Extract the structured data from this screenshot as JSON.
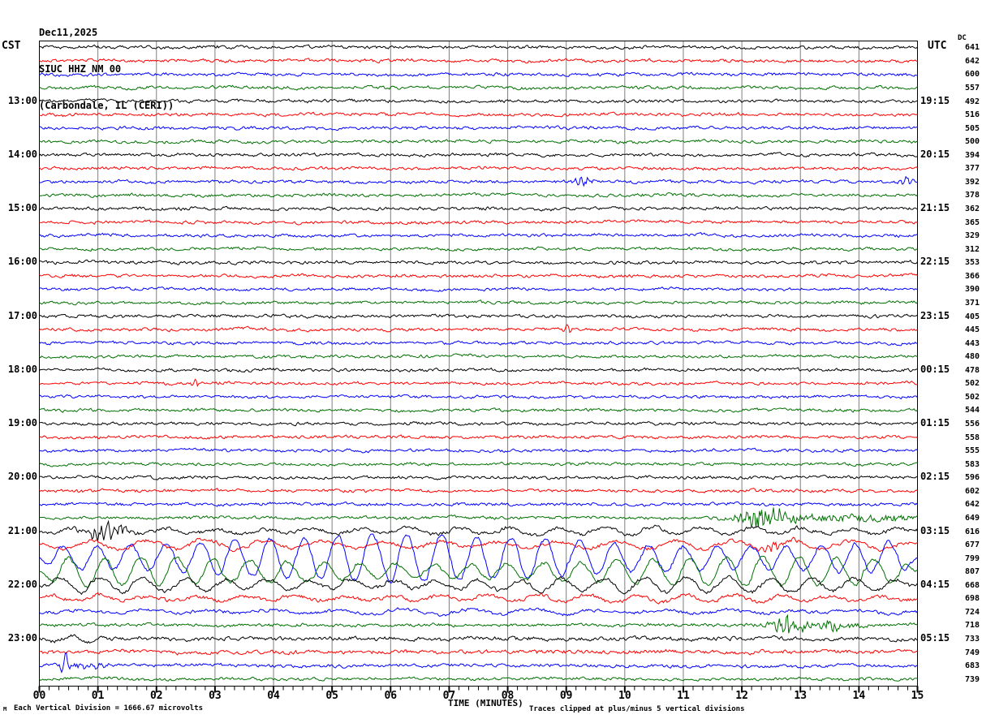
{
  "title": {
    "date": "Dec11,2025",
    "station": "SIUC HHZ NM 00",
    "location": "(Carbondale, IL (CERI))"
  },
  "headers": {
    "left": "CST",
    "right": "UTC",
    "dc": "DC"
  },
  "x_axis": {
    "label": "TIME (MINUTES)",
    "ticks": [
      "00",
      "01",
      "02",
      "03",
      "04",
      "05",
      "06",
      "07",
      "08",
      "09",
      "10",
      "11",
      "12",
      "13",
      "14",
      "15"
    ],
    "minor_ticks_per_minute": 6
  },
  "footer": {
    "corner_mark": "M",
    "scale_note": "Each Vertical Division = 1666.67 microvolts",
    "clip_note": "Traces clipped at plus/minus 5 vertical divisions"
  },
  "colors": {
    "trace_cycle": [
      "#000000",
      "#ff0000",
      "#0000ff",
      "#007000"
    ],
    "grid": "#7f7f7f",
    "border": "#000000",
    "background": "#ffffff"
  },
  "chart_data": {
    "type": "line",
    "subtype": "helicorder-seismogram",
    "minutes_per_row": 15,
    "x_range_minutes": [
      0,
      15
    ],
    "clip_divisions": 5,
    "rows": [
      {
        "cst": null,
        "utc": null,
        "dc": "641",
        "color_index": 0,
        "noise": 2.1,
        "events": []
      },
      {
        "cst": null,
        "utc": null,
        "dc": "642",
        "color_index": 1,
        "noise": 2.1,
        "events": []
      },
      {
        "cst": null,
        "utc": null,
        "dc": "600",
        "color_index": 2,
        "noise": 2.1,
        "events": []
      },
      {
        "cst": null,
        "utc": null,
        "dc": "557",
        "color_index": 3,
        "noise": 2.1,
        "events": []
      },
      {
        "cst": "13:00",
        "utc": "19:15",
        "dc": "492",
        "color_index": 0,
        "noise": 2.1,
        "events": []
      },
      {
        "cst": null,
        "utc": null,
        "dc": "516",
        "color_index": 1,
        "noise": 2.1,
        "events": []
      },
      {
        "cst": null,
        "utc": null,
        "dc": "505",
        "color_index": 2,
        "noise": 2.1,
        "events": []
      },
      {
        "cst": null,
        "utc": null,
        "dc": "500",
        "color_index": 3,
        "noise": 2.1,
        "events": []
      },
      {
        "cst": "14:00",
        "utc": "20:15",
        "dc": "394",
        "color_index": 0,
        "noise": 2.1,
        "events": []
      },
      {
        "cst": null,
        "utc": null,
        "dc": "377",
        "color_index": 1,
        "noise": 2.1,
        "events": []
      },
      {
        "cst": null,
        "utc": null,
        "dc": "392",
        "color_index": 2,
        "noise": 2.1,
        "events": [
          {
            "type": "burst",
            "t": 9.3,
            "w": 0.12,
            "amp": 4
          },
          {
            "type": "burst",
            "t": 14.85,
            "w": 0.1,
            "amp": 5
          }
        ]
      },
      {
        "cst": null,
        "utc": null,
        "dc": "378",
        "color_index": 3,
        "noise": 2.1,
        "events": []
      },
      {
        "cst": "15:00",
        "utc": "21:15",
        "dc": "362",
        "color_index": 0,
        "noise": 2.1,
        "events": []
      },
      {
        "cst": null,
        "utc": null,
        "dc": "365",
        "color_index": 1,
        "noise": 2.1,
        "events": []
      },
      {
        "cst": null,
        "utc": null,
        "dc": "329",
        "color_index": 2,
        "noise": 2.0,
        "events": []
      },
      {
        "cst": null,
        "utc": null,
        "dc": "312",
        "color_index": 3,
        "noise": 2.0,
        "events": []
      },
      {
        "cst": "16:00",
        "utc": "22:15",
        "dc": "353",
        "color_index": 0,
        "noise": 2.1,
        "events": []
      },
      {
        "cst": null,
        "utc": null,
        "dc": "366",
        "color_index": 1,
        "noise": 2.1,
        "events": []
      },
      {
        "cst": null,
        "utc": null,
        "dc": "390",
        "color_index": 2,
        "noise": 2.0,
        "events": []
      },
      {
        "cst": null,
        "utc": null,
        "dc": "371",
        "color_index": 3,
        "noise": 2.0,
        "events": []
      },
      {
        "cst": "17:00",
        "utc": "23:15",
        "dc": "405",
        "color_index": 0,
        "noise": 2.1,
        "events": []
      },
      {
        "cst": null,
        "utc": null,
        "dc": "445",
        "color_index": 1,
        "noise": 2.1,
        "events": [
          {
            "type": "burst",
            "t": 9.0,
            "w": 0.06,
            "amp": 4
          }
        ]
      },
      {
        "cst": null,
        "utc": null,
        "dc": "443",
        "color_index": 2,
        "noise": 2.0,
        "events": []
      },
      {
        "cst": null,
        "utc": null,
        "dc": "480",
        "color_index": 3,
        "noise": 2.0,
        "events": []
      },
      {
        "cst": "18:00",
        "utc": "00:15",
        "dc": "478",
        "color_index": 0,
        "noise": 2.1,
        "events": []
      },
      {
        "cst": null,
        "utc": null,
        "dc": "502",
        "color_index": 1,
        "noise": 2.1,
        "events": [
          {
            "type": "burst",
            "t": 2.7,
            "w": 0.06,
            "amp": 4
          }
        ]
      },
      {
        "cst": null,
        "utc": null,
        "dc": "502",
        "color_index": 2,
        "noise": 2.0,
        "events": []
      },
      {
        "cst": null,
        "utc": null,
        "dc": "544",
        "color_index": 3,
        "noise": 2.0,
        "events": []
      },
      {
        "cst": "19:00",
        "utc": "01:15",
        "dc": "556",
        "color_index": 0,
        "noise": 2.1,
        "events": []
      },
      {
        "cst": null,
        "utc": null,
        "dc": "558",
        "color_index": 1,
        "noise": 2.1,
        "events": []
      },
      {
        "cst": null,
        "utc": null,
        "dc": "555",
        "color_index": 2,
        "noise": 2.0,
        "events": []
      },
      {
        "cst": null,
        "utc": null,
        "dc": "583",
        "color_index": 3,
        "noise": 2.0,
        "events": []
      },
      {
        "cst": "20:00",
        "utc": "02:15",
        "dc": "596",
        "color_index": 0,
        "noise": 2.1,
        "events": []
      },
      {
        "cst": null,
        "utc": null,
        "dc": "602",
        "color_index": 1,
        "noise": 2.1,
        "events": []
      },
      {
        "cst": null,
        "utc": null,
        "dc": "642",
        "color_index": 2,
        "noise": 2.1,
        "events": []
      },
      {
        "cst": null,
        "utc": null,
        "dc": "649",
        "color_index": 3,
        "noise": 2.1,
        "events": [
          {
            "type": "burst",
            "t": 12.35,
            "w": 0.3,
            "amp": 10
          },
          {
            "type": "noiseband",
            "from": 12.0,
            "to": 15,
            "amp": 2.5
          }
        ]
      },
      {
        "cst": "21:00",
        "utc": "03:15",
        "dc": "616",
        "color_index": 0,
        "noise": 2.5,
        "events": [
          {
            "type": "burst",
            "t": 1.15,
            "w": 0.22,
            "amp": 10
          },
          {
            "type": "wave",
            "from": 0,
            "to": 15,
            "amp": 3.5,
            "freq": 1.2
          }
        ]
      },
      {
        "cst": null,
        "utc": null,
        "dc": "677",
        "color_index": 1,
        "noise": 2.5,
        "events": [
          {
            "type": "wave",
            "from": 0,
            "to": 15,
            "amp": 4.5,
            "freq": 1.0
          },
          {
            "type": "burst",
            "t": 12.6,
            "w": 0.15,
            "amp": 5
          }
        ]
      },
      {
        "cst": null,
        "utc": null,
        "dc": "799",
        "color_index": 2,
        "noise": 2.2,
        "events": [
          {
            "type": "wave",
            "from": 0,
            "to": 15,
            "amp": 21,
            "freq": 1.7
          }
        ]
      },
      {
        "cst": null,
        "utc": null,
        "dc": "807",
        "color_index": 3,
        "noise": 2.2,
        "events": [
          {
            "type": "wave",
            "from": 0,
            "to": 15,
            "amp": 13,
            "freq": 1.6
          }
        ]
      },
      {
        "cst": "22:00",
        "utc": "04:15",
        "dc": "668",
        "color_index": 0,
        "noise": 2.5,
        "events": [
          {
            "type": "wave",
            "from": 0,
            "to": 15,
            "amp": 7,
            "freq": 1.4
          }
        ]
      },
      {
        "cst": null,
        "utc": null,
        "dc": "698",
        "color_index": 1,
        "noise": 2.5,
        "events": [
          {
            "type": "wave",
            "from": 0,
            "to": 15,
            "amp": 3.5,
            "freq": 1.2
          }
        ]
      },
      {
        "cst": null,
        "utc": null,
        "dc": "724",
        "color_index": 2,
        "noise": 2.2,
        "events": [
          {
            "type": "wave",
            "from": 0,
            "to": 15,
            "amp": 2.5,
            "freq": 0.9
          }
        ]
      },
      {
        "cst": null,
        "utc": null,
        "dc": "718",
        "color_index": 3,
        "noise": 2.2,
        "events": [
          {
            "type": "burst",
            "t": 12.8,
            "w": 0.18,
            "amp": 10
          },
          {
            "type": "burst",
            "t": 13.55,
            "w": 0.08,
            "amp": 7
          },
          {
            "type": "noiseband",
            "from": 12.3,
            "to": 14.2,
            "amp": 1.5
          }
        ]
      },
      {
        "cst": "23:00",
        "utc": "05:15",
        "dc": "733",
        "color_index": 0,
        "noise": 2.6,
        "events": [
          {
            "type": "wave",
            "from": 0,
            "to": 1.2,
            "amp": 3,
            "freq": 1.5
          }
        ]
      },
      {
        "cst": null,
        "utc": null,
        "dc": "749",
        "color_index": 1,
        "noise": 2.6,
        "events": []
      },
      {
        "cst": null,
        "utc": null,
        "dc": "683",
        "color_index": 2,
        "noise": 2.1,
        "events": [
          {
            "type": "spike",
            "t": 0.45,
            "amp": 17
          },
          {
            "type": "noiseband",
            "from": 0.25,
            "to": 1.3,
            "amp": 2.5
          }
        ]
      },
      {
        "cst": null,
        "utc": null,
        "dc": "739",
        "color_index": 3,
        "noise": 2.0,
        "events": []
      }
    ]
  }
}
